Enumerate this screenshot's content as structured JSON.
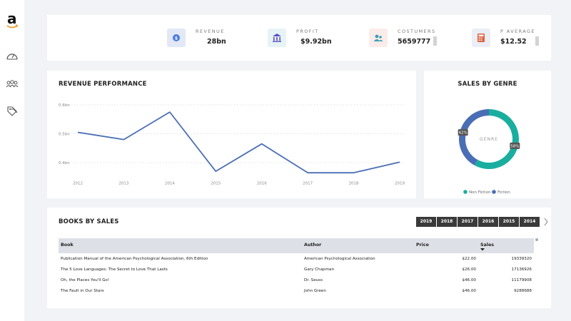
{
  "kpis": [
    {
      "label": "REVENUE",
      "value": "28bn",
      "icon": "revenue-icon",
      "color": "#e3e8f7"
    },
    {
      "label": "PROFIT",
      "value": "$9.92bn",
      "icon": "bank-icon",
      "color": "#e6f4f6"
    },
    {
      "label": "COSTUMERS",
      "value": "5659777",
      "icon": "customers-icon",
      "color": "#fbece9"
    },
    {
      "label": "P AVERAGE",
      "value": "$12.52",
      "icon": "calculator-icon",
      "color": "#ecedf5"
    }
  ],
  "revenue_chart_title": "REVENUE PERFORMANCE",
  "genre_chart_title": "SALES BY GENRE",
  "genre_center_label": "GENRE",
  "books_title": "BOOKS BY SALES",
  "year_filters": [
    "2019",
    "2018",
    "2017",
    "2016",
    "2015",
    "2014"
  ],
  "table": {
    "headers": {
      "book": "Book",
      "author": "Author",
      "price": "Price",
      "sales": "Sales"
    },
    "rows": [
      {
        "book": "Publication Manual of the American Psychological Association, 6th Edition",
        "author": "American Psychological Association",
        "price": "$22.00",
        "sales": "19339320"
      },
      {
        "book": "The 5 Love Languages: The Secret to Love That Lasts",
        "author": "Gary Chapman",
        "price": "$26.00",
        "sales": "17136926"
      },
      {
        "book": "Oh, the Places You'll Go!",
        "author": "Dr. Seuss",
        "price": "$46.00",
        "sales": "11179908"
      },
      {
        "book": "The Fault in Our Stars",
        "author": "John Green",
        "price": "$46.00",
        "sales": "9288688"
      }
    ]
  },
  "chart_data": [
    {
      "type": "line",
      "title": "REVENUE PERFORMANCE",
      "x": [
        "2012",
        "2013",
        "2014",
        "2015",
        "2016",
        "2017",
        "2018",
        "2019"
      ],
      "values": [
        0.505,
        0.48,
        0.575,
        0.37,
        0.465,
        0.365,
        0.365,
        0.402
      ],
      "yticks": [
        {
          "v": 0.6,
          "label": "0.6bn"
        },
        {
          "v": 0.5,
          "label": "0.5bn"
        },
        {
          "v": 0.4,
          "label": "0.4bn"
        }
      ],
      "ylim": [
        0.34,
        0.6
      ],
      "color": "#4a6eb5"
    },
    {
      "type": "pie",
      "title": "SALES BY GENRE",
      "slices": [
        {
          "name": "Non Fiction",
          "value": 58,
          "label": "58%",
          "color": "#1aae9f"
        },
        {
          "name": "Fiction",
          "value": 42,
          "label": "42%",
          "color": "#4a6eb5"
        }
      ],
      "legend_position": "bottom"
    }
  ]
}
